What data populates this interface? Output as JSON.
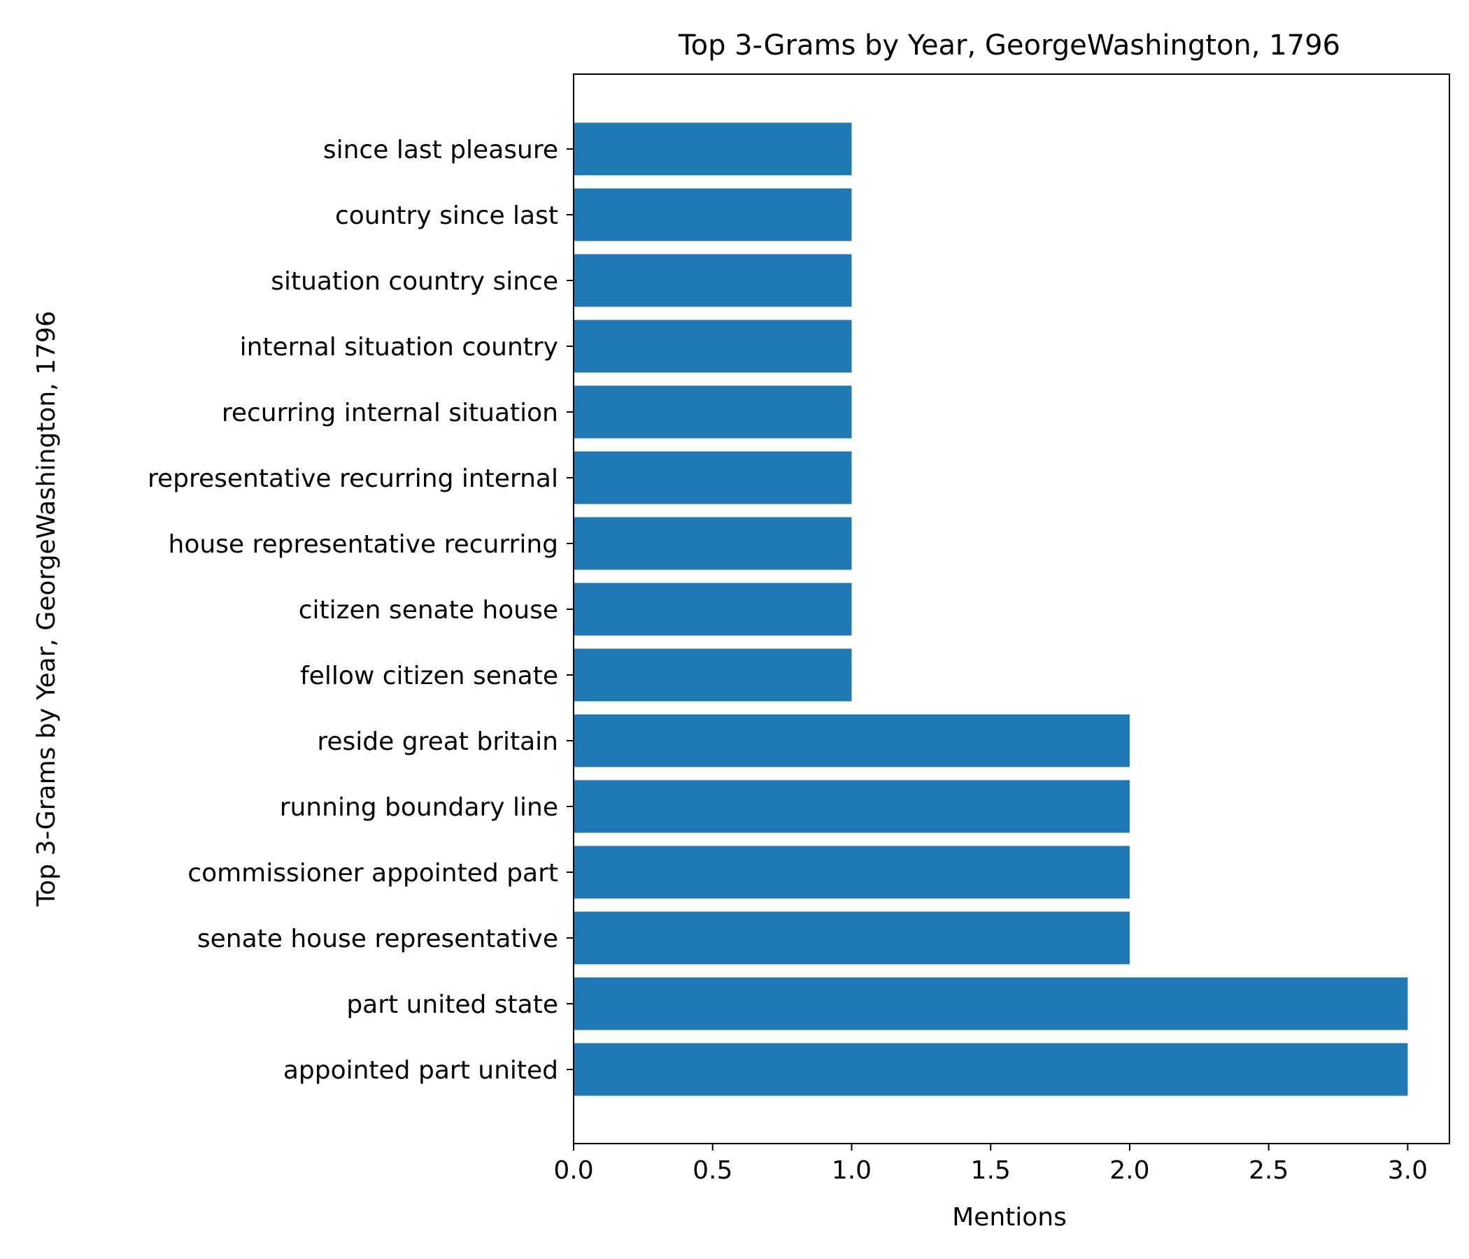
{
  "chart_data": {
    "type": "bar",
    "orientation": "horizontal",
    "title": "Top 3-Grams by Year, GeorgeWashington, 1796",
    "xlabel": "Mentions",
    "ylabel": "Top 3-Grams by Year, GeorgeWashington, 1796",
    "categories": [
      "appointed part united",
      "part united state",
      "senate house representative",
      "commissioner appointed part",
      "running boundary line",
      "reside great britain",
      "fellow citizen senate",
      "citizen senate house",
      "house representative recurring",
      "representative recurring internal",
      "recurring internal situation",
      "internal situation country",
      "situation country since",
      "country since last",
      "since last pleasure"
    ],
    "values": [
      3,
      3,
      2,
      2,
      2,
      2,
      1,
      1,
      1,
      1,
      1,
      1,
      1,
      1,
      1
    ],
    "xlim": [
      0,
      3.15
    ],
    "xticks": [
      "0.0",
      "0.5",
      "1.0",
      "1.5",
      "2.0",
      "2.5",
      "3.0"
    ],
    "grid": false,
    "colors": {
      "bar": "#1f77b4"
    }
  }
}
